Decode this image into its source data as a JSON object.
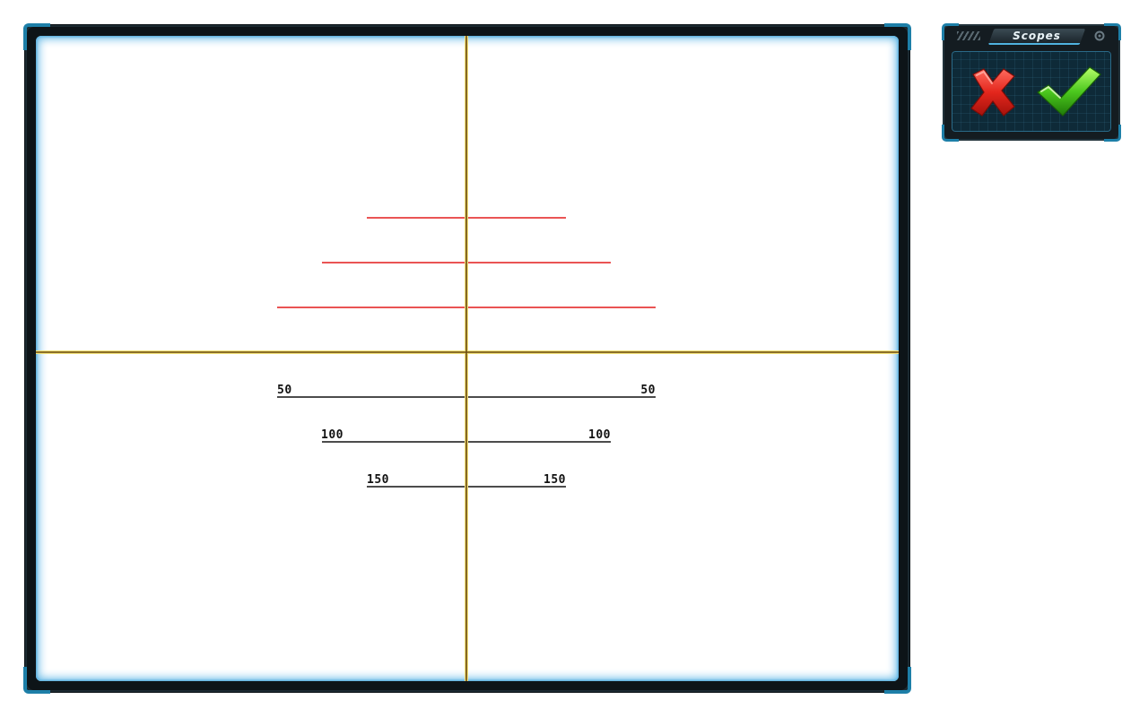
{
  "panel": {
    "title": "Scopes",
    "cancel_icon": "red-x-icon",
    "confirm_icon": "green-check-icon",
    "header_icon": "gear-icon"
  },
  "scope": {
    "crosshair_color": "#6b4a10",
    "crosshair_glow": "#f2e27a",
    "upper_mark_color": "#e31b1b",
    "lower_mark_color": "#111111",
    "lower_marks": [
      {
        "left_label": "50",
        "right_label": "50"
      },
      {
        "left_label": "100",
        "right_label": "100"
      },
      {
        "left_label": "150",
        "right_label": "150"
      }
    ]
  },
  "colors": {
    "frame": "#0d1418",
    "accent": "#1d7fa8",
    "inner_glow": "#63b8e6"
  }
}
